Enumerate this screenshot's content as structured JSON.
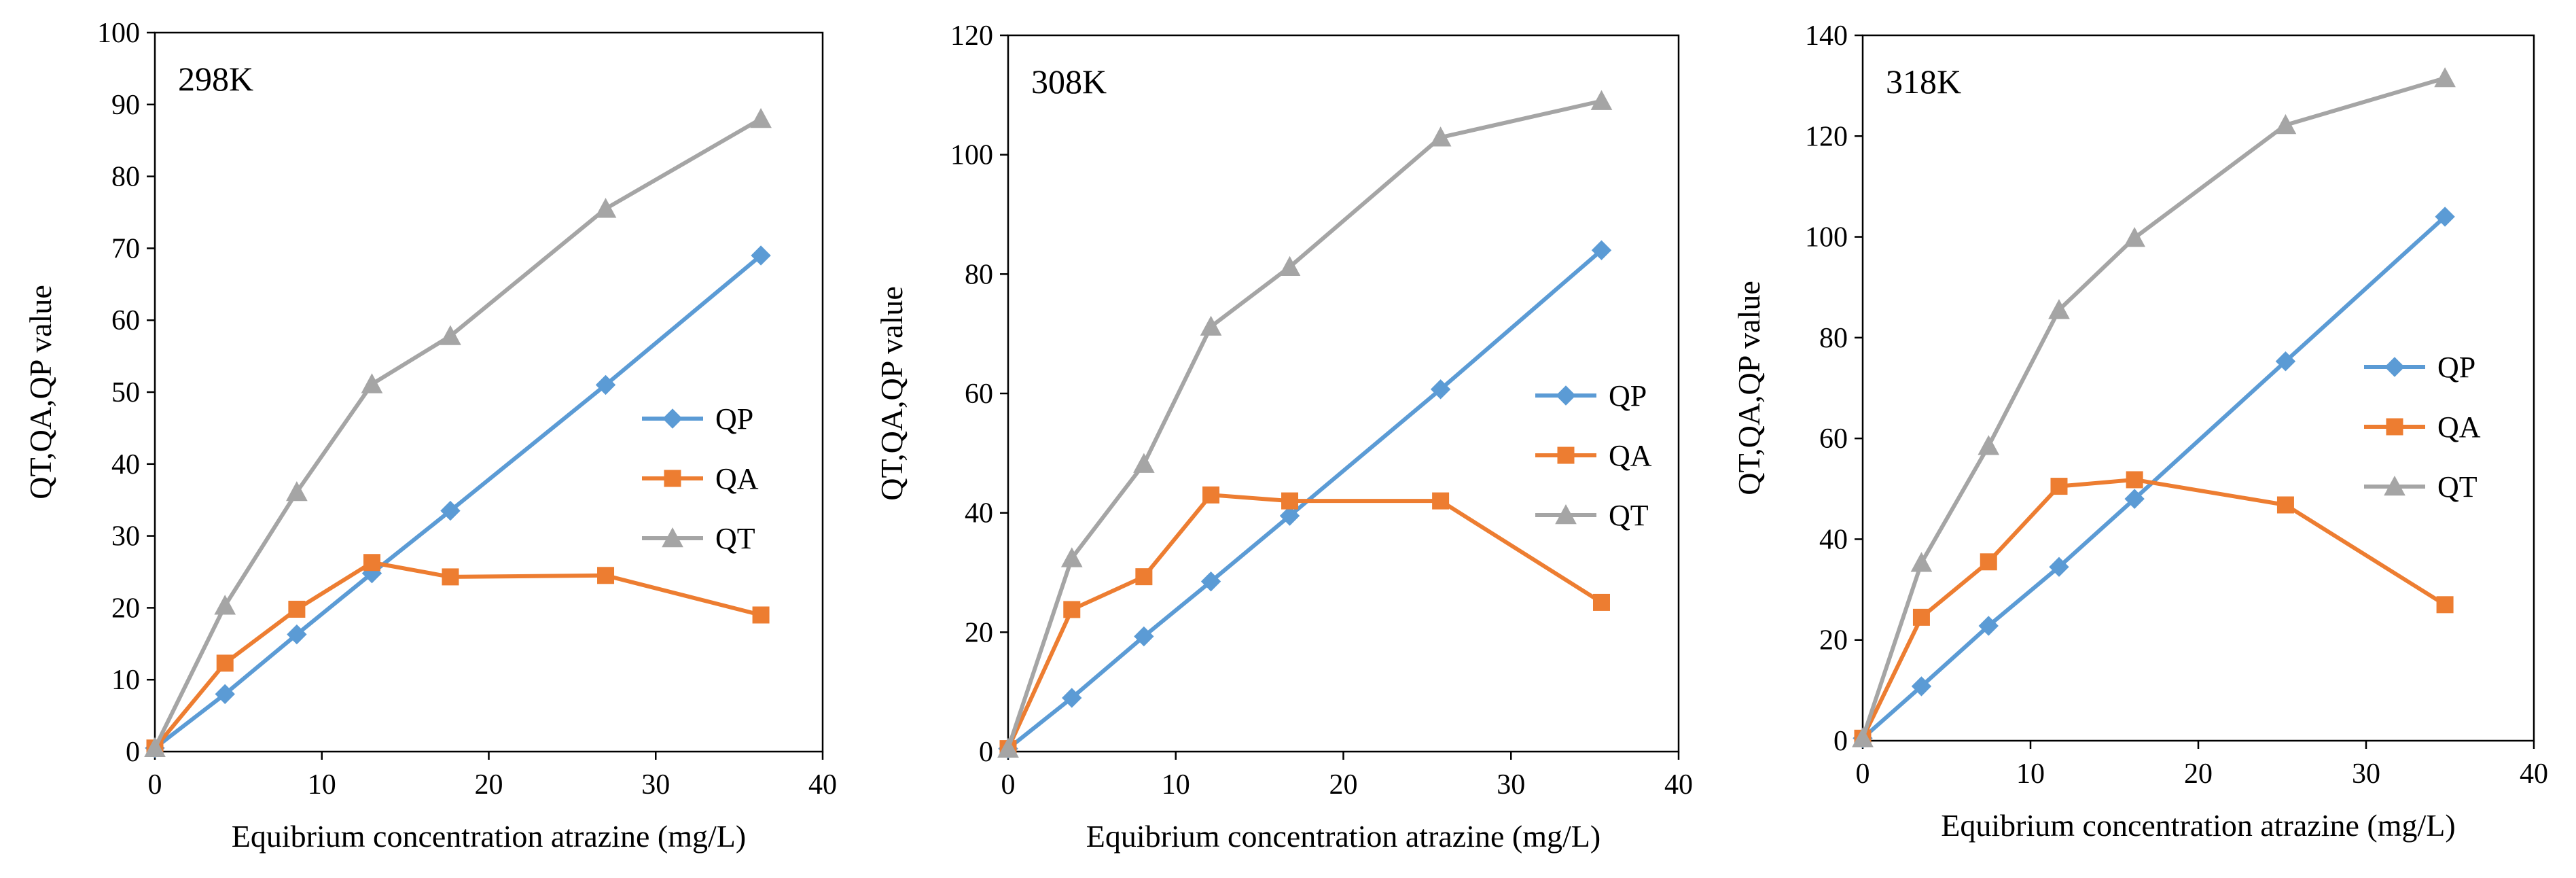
{
  "chart_data": [
    {
      "type": "line",
      "title": "298K",
      "xlabel": "Equibrium  concentration  atrazine  (mg/L)",
      "ylabel": "QT,QA,QP value",
      "xlim": [
        0,
        40
      ],
      "ylim": [
        0,
        100
      ],
      "xticks": [
        0,
        10,
        20,
        30,
        40
      ],
      "yticks": [
        0,
        10,
        20,
        30,
        40,
        50,
        60,
        70,
        80,
        90,
        100
      ],
      "grid": false,
      "legend_position": "right",
      "series": [
        {
          "name": "QP",
          "color": "#5B9BD5",
          "marker": "diamond",
          "x": [
            0,
            4.2,
            8.5,
            13,
            17.7,
            27,
            36.3
          ],
          "y": [
            0.5,
            8,
            16.3,
            24.8,
            33.5,
            51,
            69
          ]
        },
        {
          "name": "QA",
          "color": "#ED7D31",
          "marker": "square",
          "x": [
            0,
            4.2,
            8.5,
            13,
            17.7,
            27,
            36.3
          ],
          "y": [
            0.5,
            12.3,
            19.8,
            26.3,
            24.3,
            24.5,
            19
          ]
        },
        {
          "name": "QT",
          "color": "#A5A5A5",
          "marker": "triangle",
          "x": [
            0,
            4.2,
            8.5,
            13,
            17.7,
            27,
            36.3
          ],
          "y": [
            0.5,
            20.3,
            36.1,
            51.1,
            57.8,
            75.5,
            88
          ]
        }
      ]
    },
    {
      "type": "line",
      "title": "308K",
      "xlabel": "Equibrium  concentration  atrazine  (mg/L)",
      "ylabel": "QT,QA,QP value",
      "xlim": [
        0,
        40
      ],
      "ylim": [
        0,
        120
      ],
      "xticks": [
        0,
        10,
        20,
        30,
        40
      ],
      "yticks": [
        0,
        20,
        40,
        60,
        80,
        100,
        120
      ],
      "grid": false,
      "legend_position": "right",
      "series": [
        {
          "name": "QP",
          "color": "#5B9BD5",
          "marker": "diamond",
          "x": [
            0,
            3.8,
            8.1,
            12.1,
            16.8,
            25.8,
            35.4
          ],
          "y": [
            0.5,
            9,
            19.3,
            28.5,
            39.5,
            60.7,
            84
          ]
        },
        {
          "name": "QA",
          "color": "#ED7D31",
          "marker": "square",
          "x": [
            0,
            3.8,
            8.1,
            12.1,
            16.8,
            25.8,
            35.4
          ],
          "y": [
            0.5,
            23.8,
            29.3,
            43,
            42,
            42,
            25
          ]
        },
        {
          "name": "QT",
          "color": "#A5A5A5",
          "marker": "triangle",
          "x": [
            0,
            3.8,
            8.1,
            12.1,
            16.8,
            25.8,
            35.4
          ],
          "y": [
            0.5,
            32.4,
            48.2,
            71.2,
            81.2,
            102.9,
            109
          ]
        }
      ]
    },
    {
      "type": "line",
      "title": "318K",
      "xlabel": "Equibrium  concentration  atrazine  (mg/L)",
      "ylabel": "QT,QA,QP value",
      "xlim": [
        0,
        40
      ],
      "ylim": [
        0,
        140
      ],
      "xticks": [
        0,
        10,
        20,
        30,
        40
      ],
      "yticks": [
        0,
        20,
        40,
        60,
        80,
        100,
        120,
        140
      ],
      "grid": false,
      "legend_position": "right",
      "series": [
        {
          "name": "QP",
          "color": "#5B9BD5",
          "marker": "diamond",
          "x": [
            0,
            3.5,
            7.5,
            11.7,
            16.2,
            25.2,
            34.7
          ],
          "y": [
            0.5,
            10.8,
            22.8,
            34.5,
            48,
            75.3,
            104
          ]
        },
        {
          "name": "QA",
          "color": "#ED7D31",
          "marker": "square",
          "x": [
            0,
            3.5,
            7.5,
            11.7,
            16.2,
            25.2,
            34.7
          ],
          "y": [
            0.5,
            24.5,
            35.5,
            50.5,
            51.8,
            46.8,
            27
          ]
        },
        {
          "name": "QT",
          "color": "#A5A5A5",
          "marker": "triangle",
          "x": [
            0,
            3.5,
            7.5,
            11.7,
            16.2,
            25.2,
            34.7
          ],
          "y": [
            0.5,
            35.3,
            58.5,
            85.5,
            99.8,
            122.2,
            131.5
          ]
        }
      ]
    }
  ]
}
